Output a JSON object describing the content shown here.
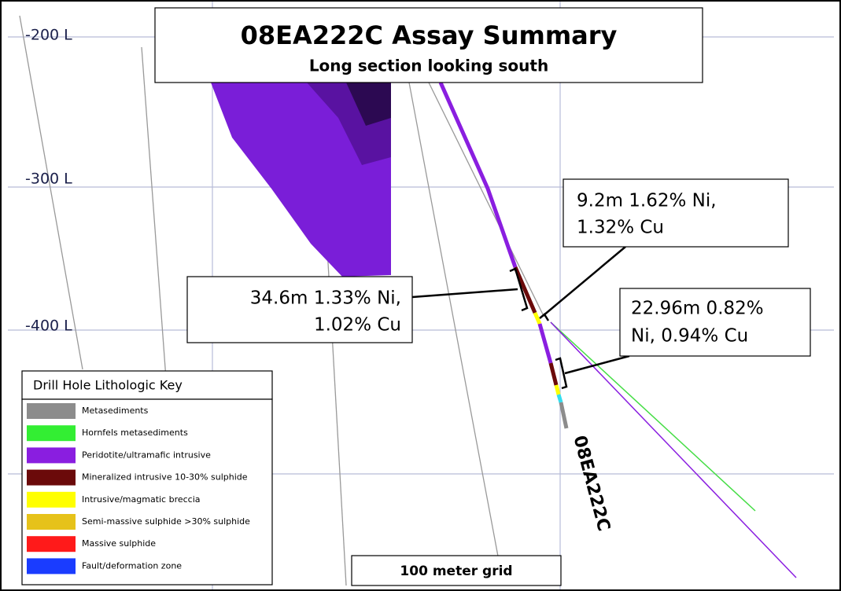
{
  "header": {
    "title": "08EA222C Assay Summary",
    "subtitle": "Long section looking south"
  },
  "levels": [
    "-200 L",
    "-300 L",
    "-400 L"
  ],
  "hole_label": "08EA222C",
  "callouts": [
    {
      "lines": [
        "9.2m 1.62% Ni,",
        "1.32% Cu"
      ]
    },
    {
      "lines": [
        "34.6m 1.33% Ni,",
        "1.02% Cu"
      ]
    },
    {
      "lines": [
        "22.96m 0.82%",
        "Ni, 0.94% Cu"
      ]
    }
  ],
  "legend": {
    "title": "Drill Hole Lithologic Key",
    "items": [
      {
        "label": "Metasediments",
        "color": "#8c8c8c"
      },
      {
        "label": "Hornfels metasediments",
        "color": "#33ee33"
      },
      {
        "label": "Peridotite/ultramafic intrusive",
        "color": "#8a1ee0"
      },
      {
        "label": "Mineralized intrusive 10-30% sulphide",
        "color": "#6b0a0a"
      },
      {
        "label": "Intrusive/magmatic breccia",
        "color": "#ffff00"
      },
      {
        "label": "Semi-massive sulphide >30% sulphide",
        "color": "#e6c21a"
      },
      {
        "label": "Massive sulphide",
        "color": "#ff1a1a"
      },
      {
        "label": "Fault/deformation zone",
        "color": "#1a3cff"
      }
    ]
  },
  "grid_label": "100 meter grid"
}
